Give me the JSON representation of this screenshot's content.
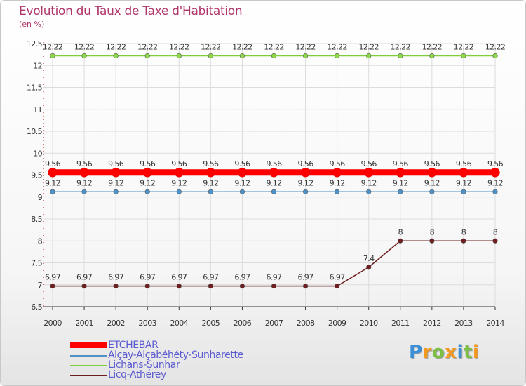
{
  "title": "Evolution du Taux de Taxe d'Habitation",
  "subtitle": "(en %)",
  "logo": {
    "letters": [
      "P",
      "r",
      "o",
      "x",
      "i",
      "t",
      "i"
    ],
    "colors": [
      "#3a8fd6",
      "#f29a1f",
      "#7bc043",
      "#f29a1f",
      "#3a8fd6",
      "#7bc043",
      "#f29a1f"
    ]
  },
  "chart_data": {
    "type": "line",
    "title": "Evolution du Taux de Taxe d'Habitation",
    "ylabel": "(en %)",
    "ylim": [
      6.5,
      12.5
    ],
    "yticks": [
      6.5,
      7,
      7.5,
      8,
      8.5,
      9,
      9.5,
      10,
      10.5,
      11,
      11.5,
      12,
      12.5
    ],
    "x": [
      2000,
      2001,
      2002,
      2003,
      2004,
      2005,
      2006,
      2007,
      2008,
      2009,
      2010,
      2011,
      2012,
      2013,
      2014
    ],
    "series": [
      {
        "name": "Lichans-Sunhar",
        "color": "#7ccf3a",
        "point": "#8fd84c",
        "values": [
          12.22,
          12.22,
          12.22,
          12.22,
          12.22,
          12.22,
          12.22,
          12.22,
          12.22,
          12.22,
          12.22,
          12.22,
          12.22,
          12.22,
          12.22
        ]
      },
      {
        "name": "Alçay-Alçabéhéty-Sunharette",
        "color": "#4f92c8",
        "point": "#4f92c8",
        "values": [
          9.12,
          9.12,
          9.12,
          9.12,
          9.12,
          9.12,
          9.12,
          9.12,
          9.12,
          9.12,
          9.12,
          9.12,
          9.12,
          9.12,
          9.12
        ]
      },
      {
        "name": "Licq-Athérey",
        "color": "#6e1e1e",
        "point": "#6e1e1e",
        "values": [
          6.97,
          6.97,
          6.97,
          6.97,
          6.97,
          6.97,
          6.97,
          6.97,
          6.97,
          6.97,
          7.4,
          8,
          8,
          8,
          8
        ]
      },
      {
        "name": "ETCHEBAR",
        "color": "#ff0000",
        "point": "#ff0000",
        "values": [
          9.56,
          9.56,
          9.56,
          9.56,
          9.56,
          9.56,
          9.56,
          9.56,
          9.56,
          9.56,
          9.56,
          9.56,
          9.56,
          9.56,
          9.56
        ]
      }
    ],
    "legend": [
      "ETCHEBAR",
      "Alçay-Alçabéhéty-Sunharette",
      "Lichans-Sunhar",
      "Licq-Athérey"
    ]
  }
}
